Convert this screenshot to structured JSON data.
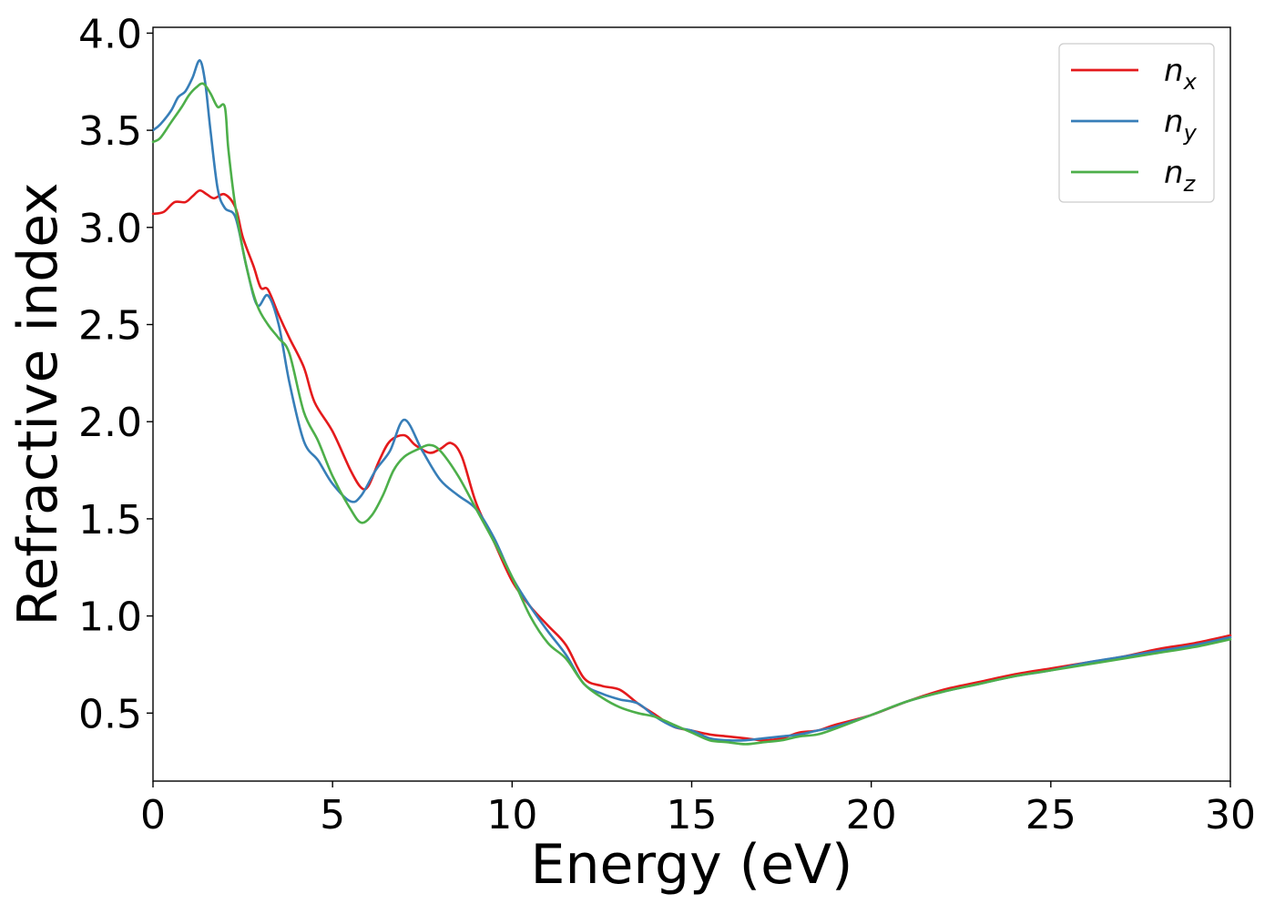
{
  "chart_data": {
    "type": "line",
    "title": "",
    "xlabel": "Energy (eV)",
    "ylabel": "Refractive index",
    "xlim": [
      0,
      30
    ],
    "ylim": [
      0.15,
      4.03
    ],
    "xticks": [
      0,
      5,
      10,
      15,
      20,
      25,
      30
    ],
    "xtick_labels": [
      "0",
      "5",
      "10",
      "15",
      "20",
      "25",
      "30"
    ],
    "yticks": [
      0.5,
      1.0,
      1.5,
      2.0,
      2.5,
      3.0,
      3.5,
      4.0
    ],
    "ytick_labels": [
      "0.5",
      "1.0",
      "1.5",
      "2.0",
      "2.5",
      "3.0",
      "3.5",
      "4.0"
    ],
    "grid": false,
    "legend_position": "top-right",
    "series": [
      {
        "name": "n_x",
        "label_base": "n",
        "label_sub": "x",
        "color": "#e41a1c",
        "x": [
          0,
          0.3,
          0.6,
          0.9,
          1.1,
          1.3,
          1.5,
          1.7,
          2.0,
          2.3,
          2.5,
          2.8,
          3.0,
          3.2,
          3.5,
          3.8,
          4.2,
          4.5,
          5.0,
          5.5,
          5.8,
          6.0,
          6.3,
          6.6,
          7.0,
          7.3,
          7.7,
          8.0,
          8.3,
          8.6,
          9.0,
          9.5,
          10.0,
          10.5,
          11.0,
          11.5,
          12.0,
          12.5,
          13.0,
          13.5,
          14.0,
          14.5,
          15.0,
          15.5,
          16.0,
          16.5,
          17.0,
          17.5,
          18.0,
          18.5,
          19.0,
          20.0,
          21.0,
          22.0,
          23.0,
          24.0,
          25.0,
          26.0,
          27.0,
          28.0,
          29.0,
          30.0
        ],
        "values": [
          3.07,
          3.08,
          3.13,
          3.13,
          3.16,
          3.19,
          3.17,
          3.15,
          3.17,
          3.1,
          2.95,
          2.8,
          2.69,
          2.68,
          2.55,
          2.43,
          2.28,
          2.1,
          1.95,
          1.75,
          1.66,
          1.67,
          1.8,
          1.9,
          1.93,
          1.88,
          1.84,
          1.86,
          1.89,
          1.82,
          1.58,
          1.38,
          1.18,
          1.05,
          0.95,
          0.85,
          0.68,
          0.64,
          0.62,
          0.55,
          0.49,
          0.43,
          0.41,
          0.39,
          0.38,
          0.37,
          0.36,
          0.37,
          0.4,
          0.41,
          0.44,
          0.49,
          0.56,
          0.62,
          0.66,
          0.7,
          0.73,
          0.76,
          0.79,
          0.83,
          0.86,
          0.9
        ]
      },
      {
        "name": "n_y",
        "label_base": "n",
        "label_sub": "y",
        "color": "#377eb8",
        "x": [
          0,
          0.2,
          0.5,
          0.7,
          0.9,
          1.1,
          1.3,
          1.45,
          1.6,
          1.8,
          2.0,
          2.3,
          2.6,
          2.9,
          3.2,
          3.5,
          3.8,
          4.2,
          4.6,
          5.0,
          5.5,
          5.8,
          6.2,
          6.6,
          7.0,
          7.5,
          8.0,
          8.5,
          9.0,
          9.5,
          10.0,
          10.5,
          11.0,
          11.5,
          12.0,
          12.5,
          13.0,
          13.5,
          14.0,
          14.5,
          15.0,
          15.5,
          16.0,
          16.5,
          17.0,
          17.5,
          18.0,
          18.5,
          19.0,
          20.0,
          21.0,
          22.0,
          23.0,
          24.0,
          25.0,
          26.0,
          27.0,
          28.0,
          29.0,
          30.0
        ],
        "values": [
          3.5,
          3.53,
          3.6,
          3.67,
          3.7,
          3.77,
          3.86,
          3.75,
          3.5,
          3.2,
          3.1,
          3.05,
          2.8,
          2.6,
          2.65,
          2.5,
          2.2,
          1.9,
          1.8,
          1.68,
          1.59,
          1.62,
          1.75,
          1.85,
          2.01,
          1.85,
          1.7,
          1.62,
          1.55,
          1.4,
          1.2,
          1.05,
          0.92,
          0.8,
          0.65,
          0.6,
          0.57,
          0.55,
          0.48,
          0.43,
          0.41,
          0.37,
          0.36,
          0.36,
          0.37,
          0.38,
          0.39,
          0.41,
          0.43,
          0.49,
          0.56,
          0.61,
          0.65,
          0.69,
          0.72,
          0.76,
          0.79,
          0.82,
          0.85,
          0.89
        ]
      },
      {
        "name": "n_z",
        "label_base": "n",
        "label_sub": "z",
        "color": "#4daf4a",
        "x": [
          0,
          0.2,
          0.5,
          0.8,
          1.0,
          1.2,
          1.4,
          1.6,
          1.8,
          2.0,
          2.1,
          2.3,
          2.6,
          2.9,
          3.2,
          3.5,
          3.8,
          4.2,
          4.6,
          5.0,
          5.5,
          5.8,
          6.1,
          6.4,
          6.7,
          7.0,
          7.4,
          7.7,
          8.0,
          8.5,
          9.0,
          9.5,
          10.0,
          10.5,
          11.0,
          11.5,
          12.0,
          12.5,
          13.0,
          13.5,
          14.0,
          14.5,
          15.0,
          15.5,
          16.0,
          16.5,
          17.0,
          17.5,
          18.0,
          18.5,
          19.0,
          20.0,
          21.0,
          22.0,
          23.0,
          24.0,
          25.0,
          26.0,
          27.0,
          28.0,
          29.0,
          30.0
        ],
        "values": [
          3.44,
          3.46,
          3.54,
          3.62,
          3.68,
          3.72,
          3.74,
          3.69,
          3.62,
          3.62,
          3.4,
          3.1,
          2.8,
          2.6,
          2.5,
          2.43,
          2.35,
          2.05,
          1.9,
          1.72,
          1.55,
          1.48,
          1.52,
          1.62,
          1.75,
          1.82,
          1.86,
          1.88,
          1.85,
          1.72,
          1.55,
          1.38,
          1.2,
          1.0,
          0.86,
          0.78,
          0.65,
          0.58,
          0.53,
          0.5,
          0.48,
          0.44,
          0.4,
          0.36,
          0.35,
          0.34,
          0.35,
          0.36,
          0.38,
          0.39,
          0.42,
          0.49,
          0.56,
          0.61,
          0.65,
          0.69,
          0.72,
          0.75,
          0.78,
          0.81,
          0.84,
          0.88
        ]
      }
    ]
  }
}
